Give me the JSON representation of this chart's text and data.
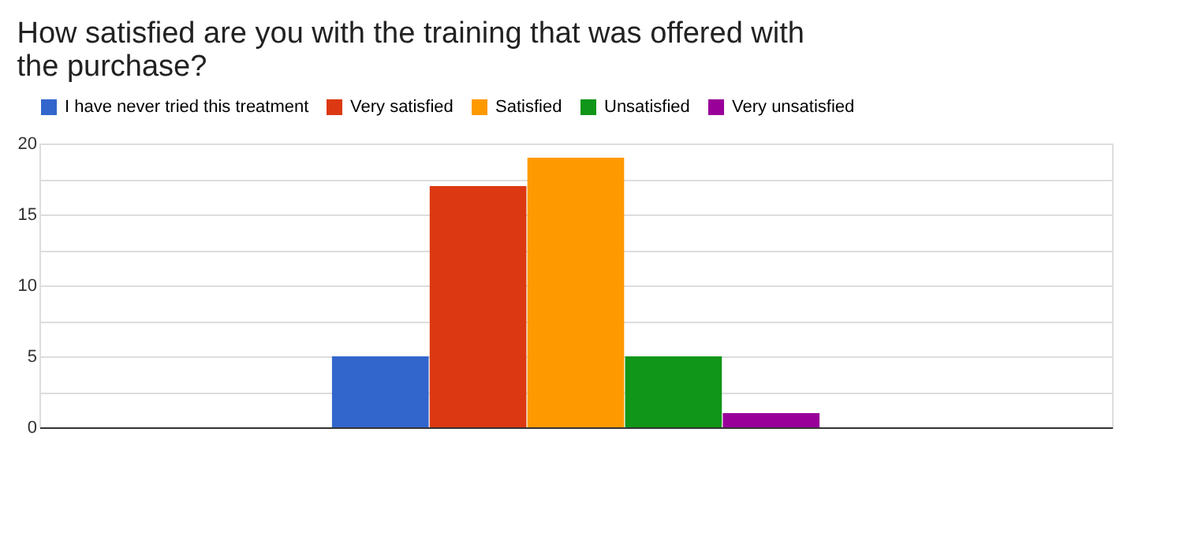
{
  "chart_data": {
    "type": "bar",
    "title": "How satisfied are you with the training that was offered with the purchase?",
    "categories": [
      null
    ],
    "series": [
      {
        "name": "I have never tried this treatment",
        "color": "#3366cc",
        "values": [
          5
        ]
      },
      {
        "name": "Very satisfied",
        "color": "#dc3912",
        "values": [
          17
        ]
      },
      {
        "name": "Satisfied",
        "color": "#ff9900",
        "values": [
          19
        ]
      },
      {
        "name": "Unsatisfied",
        "color": "#109618",
        "values": [
          5
        ]
      },
      {
        "name": "Very unsatisfied",
        "color": "#990099",
        "values": [
          1
        ]
      }
    ],
    "ylim": [
      0,
      20
    ],
    "yticks": [
      0,
      {
        "value": 2.5,
        "label": null
      },
      5,
      {
        "value": 7.5,
        "label": null
      },
      10,
      {
        "value": 12.5,
        "label": null
      },
      15,
      {
        "value": 17.5,
        "label": null
      },
      20
    ],
    "grid": "y",
    "legend": "top",
    "tick_labels": "y"
  }
}
